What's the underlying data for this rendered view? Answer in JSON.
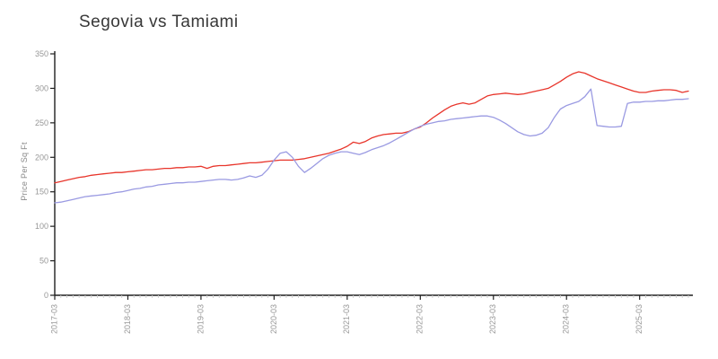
{
  "chart_data": {
    "type": "line",
    "title": "Segovia vs Tamiami",
    "xlabel": "",
    "ylabel": "Price Per Sq Ft",
    "ylim": [
      0,
      350
    ],
    "yticks": [
      0,
      50,
      100,
      150,
      200,
      250,
      300,
      350
    ],
    "xticks": [
      "2017-03",
      "2018-03",
      "2019-03",
      "2020-03",
      "2021-03",
      "2022-03",
      "2023-03",
      "2024-03",
      "2025-03"
    ],
    "grid": false,
    "legend": "none",
    "categories": [
      "2017-03",
      "2017-04",
      "2017-05",
      "2017-06",
      "2017-07",
      "2017-08",
      "2017-09",
      "2017-10",
      "2017-11",
      "2017-12",
      "2018-01",
      "2018-02",
      "2018-03",
      "2018-04",
      "2018-05",
      "2018-06",
      "2018-07",
      "2018-08",
      "2018-09",
      "2018-10",
      "2018-11",
      "2018-12",
      "2019-01",
      "2019-02",
      "2019-03",
      "2019-04",
      "2019-05",
      "2019-06",
      "2019-07",
      "2019-08",
      "2019-09",
      "2019-10",
      "2019-11",
      "2019-12",
      "2020-01",
      "2020-02",
      "2020-03",
      "2020-04",
      "2020-05",
      "2020-06",
      "2020-07",
      "2020-08",
      "2020-09",
      "2020-10",
      "2020-11",
      "2020-12",
      "2021-01",
      "2021-02",
      "2021-03",
      "2021-04",
      "2021-05",
      "2021-06",
      "2021-07",
      "2021-08",
      "2021-09",
      "2021-10",
      "2021-11",
      "2021-12",
      "2022-01",
      "2022-02",
      "2022-03",
      "2022-04",
      "2022-05",
      "2022-06",
      "2022-07",
      "2022-08",
      "2022-09",
      "2022-10",
      "2022-11",
      "2022-12",
      "2023-01",
      "2023-02",
      "2023-03",
      "2023-04",
      "2023-05",
      "2023-06",
      "2023-07",
      "2023-08",
      "2023-09",
      "2023-10",
      "2023-11",
      "2023-12",
      "2024-01",
      "2024-02",
      "2024-03",
      "2024-04",
      "2024-05",
      "2024-06",
      "2024-07",
      "2024-08",
      "2024-09",
      "2024-10",
      "2024-11",
      "2024-12",
      "2025-01",
      "2025-02",
      "2025-03",
      "2025-04",
      "2025-05",
      "2025-06",
      "2025-07",
      "2025-08",
      "2025-09",
      "2025-10",
      "2025-11"
    ],
    "series": [
      {
        "name": "Segovia",
        "color": "#e8352b",
        "values": [
          163,
          165,
          167,
          169,
          171,
          172,
          174,
          175,
          176,
          177,
          178,
          178,
          179,
          180,
          181,
          182,
          182,
          183,
          184,
          184,
          185,
          185,
          186,
          186,
          187,
          184,
          187,
          188,
          188,
          189,
          190,
          191,
          192,
          192,
          193,
          194,
          195,
          196,
          196,
          196,
          197,
          198,
          200,
          202,
          204,
          206,
          209,
          212,
          216,
          222,
          220,
          223,
          228,
          231,
          233,
          234,
          235,
          235,
          237,
          241,
          244,
          250,
          257,
          263,
          269,
          274,
          277,
          279,
          277,
          279,
          284,
          289,
          291,
          292,
          293,
          292,
          291,
          292,
          294,
          296,
          298,
          300,
          305,
          310,
          316,
          321,
          324,
          322,
          318,
          314,
          311,
          308,
          305,
          302,
          299,
          296,
          294,
          294,
          296,
          297,
          298,
          298,
          297,
          294,
          296
        ]
      },
      {
        "name": "Tamiami",
        "color": "#9a9ae2",
        "values": [
          134,
          135,
          137,
          139,
          141,
          143,
          144,
          145,
          146,
          147,
          149,
          150,
          152,
          154,
          155,
          157,
          158,
          160,
          161,
          162,
          163,
          163,
          164,
          164,
          165,
          166,
          167,
          168,
          168,
          167,
          168,
          170,
          173,
          171,
          174,
          183,
          196,
          206,
          208,
          200,
          187,
          178,
          184,
          191,
          198,
          203,
          206,
          208,
          208,
          206,
          204,
          207,
          211,
          214,
          217,
          221,
          226,
          231,
          236,
          241,
          245,
          248,
          250,
          252,
          253,
          255,
          256,
          257,
          258,
          259,
          260,
          260,
          258,
          254,
          249,
          243,
          237,
          233,
          231,
          232,
          235,
          243,
          258,
          270,
          275,
          278,
          281,
          288,
          299,
          246,
          245,
          244,
          244,
          245,
          278,
          280,
          280,
          281,
          281,
          282,
          282,
          283,
          284,
          284,
          285
        ]
      }
    ],
    "colors": {
      "axis": "#1f1f1f",
      "tick_label": "#979797",
      "minor_tick": "#cccccc",
      "title": "#383838"
    }
  }
}
